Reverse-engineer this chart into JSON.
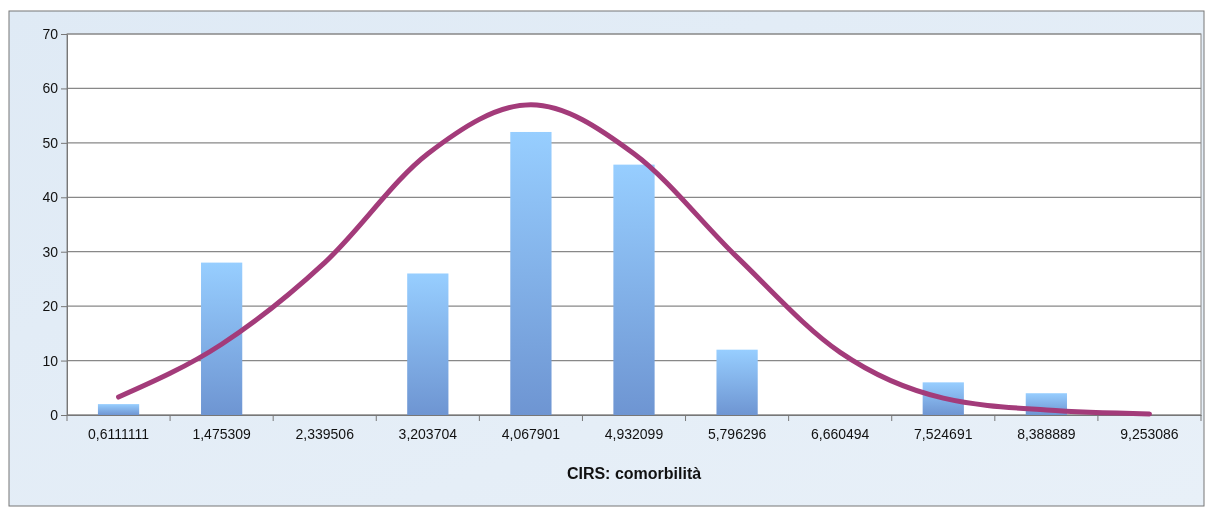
{
  "chart_data": {
    "type": "bar",
    "xlabel": "CIRS: comorbilità",
    "categories": [
      "0,6111111",
      "1,475309",
      "2,339506",
      "3,203704",
      "4,067901",
      "4,932099",
      "5,796296",
      "6,660494",
      "7,524691",
      "8,388889",
      "9,253086"
    ],
    "series": [
      {
        "color": "#7aa6ea",
        "values": [
          2,
          28,
          0,
          26,
          52,
          46,
          12,
          0,
          6,
          4,
          0
        ]
      },
      {
        "type": "line",
        "color": "#a33b7a",
        "values": [
          3.3,
          13,
          28,
          48,
          57,
          48,
          29,
          11.5,
          3.1,
          0.9,
          0.2
        ]
      }
    ],
    "ylim": [
      0,
      70
    ],
    "yticks": [
      0,
      10,
      20,
      30,
      40,
      50,
      60,
      70
    ],
    "grid": "y",
    "marker": "none",
    "line_style": "solid"
  }
}
